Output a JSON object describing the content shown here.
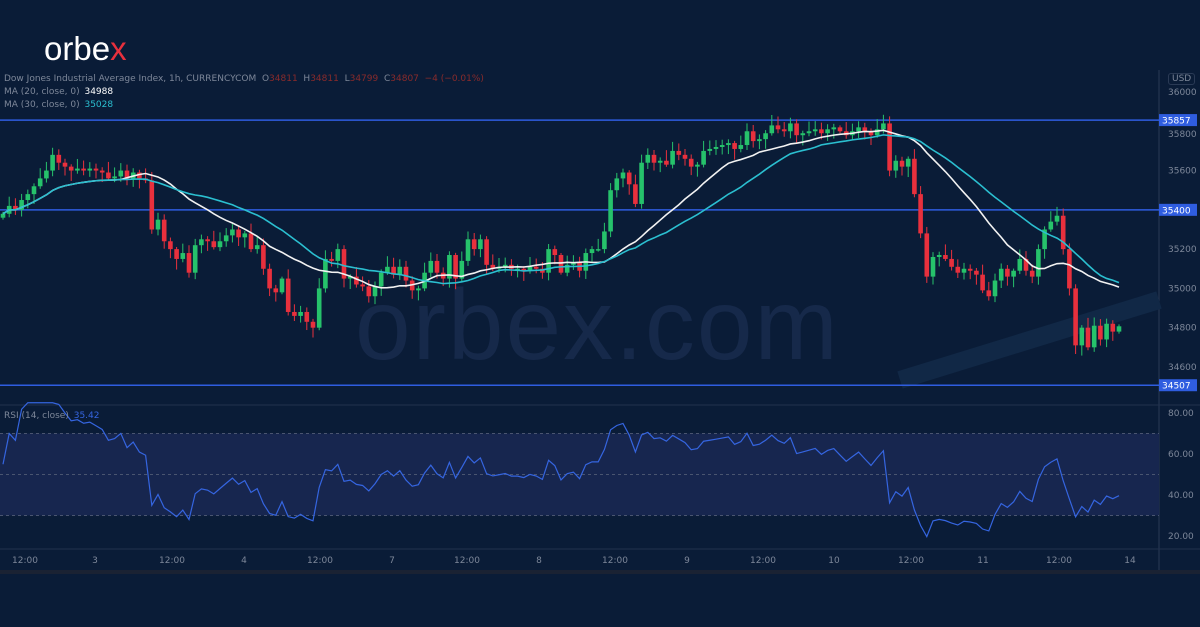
{
  "brand": {
    "logo_text": "orbe",
    "logo_x": "x",
    "watermark": "orbex.com"
  },
  "header": {
    "symbol": "Dow Jones Industrial Average Index, 1h, CURRENCYCOM",
    "o_label": "O",
    "o": "34811",
    "h_label": "H",
    "h": "34811",
    "l_label": "L",
    "l": "34799",
    "c_label": "C",
    "c": "34807",
    "change": "−4 (−0.01%)",
    "ma20_label": "MA (20, close, 0)",
    "ma20_value": "34988",
    "ma30_label": "MA (30, close, 0)",
    "ma30_value": "35028",
    "rsi_label": "RSI (14, close)",
    "rsi_value": "35.42"
  },
  "colors": {
    "background": "#0a1c37",
    "up": "#26c26b",
    "down": "#e8303d",
    "ma20": "#f2f2f2",
    "ma30": "#2bbfd0",
    "level": "#2f5de0",
    "rsi": "#3565e0",
    "rsi_band": "#17264f"
  },
  "chart_data": [
    {
      "type": "candlestick",
      "currency": "USD",
      "ylim": [
        34500,
        36050
      ],
      "y_ticks": [
        "36000",
        "35800",
        "35600",
        "35400",
        "35200",
        "35000",
        "34800",
        "34600"
      ],
      "x_ticks": [
        "12:00",
        "3",
        "12:00",
        "4",
        "12:00",
        "7",
        "12:00",
        "8",
        "12:00",
        "9",
        "12:00",
        "10",
        "12:00",
        "11",
        "12:00",
        "14"
      ],
      "levels": [
        "35857",
        "35400",
        "34507"
      ],
      "closes": [
        35380,
        35420,
        35400,
        35450,
        35480,
        35520,
        35560,
        35600,
        35680,
        35640,
        35620,
        35600,
        35610,
        35600,
        35610,
        35600,
        35590,
        35560,
        35570,
        35600,
        35560,
        35590,
        35560,
        35550,
        35300,
        35350,
        35240,
        35200,
        35150,
        35180,
        35080,
        35220,
        35250,
        35240,
        35210,
        35240,
        35270,
        35300,
        35260,
        35280,
        35200,
        35220,
        35100,
        35000,
        34980,
        35050,
        34880,
        34860,
        34880,
        34830,
        34800,
        35000,
        35150,
        35140,
        35200,
        35050,
        35060,
        35020,
        35010,
        34960,
        35010,
        35080,
        35110,
        35070,
        35110,
        35040,
        34990,
        35000,
        35080,
        35140,
        35080,
        35050,
        35170,
        35050,
        35140,
        35250,
        35200,
        35250,
        35120,
        35100,
        35110,
        35120,
        35100,
        35100,
        35090,
        35110,
        35100,
        35080,
        35200,
        35170,
        35080,
        35120,
        35130,
        35090,
        35180,
        35200,
        35200,
        35290,
        35500,
        35560,
        35590,
        35530,
        35430,
        35640,
        35680,
        35640,
        35650,
        35630,
        35700,
        35680,
        35660,
        35620,
        35630,
        35700,
        35710,
        35720,
        35730,
        35740,
        35710,
        35730,
        35800,
        35750,
        35760,
        35790,
        35830,
        35810,
        35800,
        35840,
        35780,
        35790,
        35800,
        35810,
        35790,
        35810,
        35820,
        35800,
        35780,
        35800,
        35820,
        35800,
        35780,
        35810,
        35840,
        35600,
        35650,
        35620,
        35660,
        35480,
        35280,
        35060,
        35160,
        35170,
        35150,
        35110,
        35080,
        35100,
        35090,
        35070,
        34990,
        34960,
        35040,
        35100,
        35060,
        35090,
        35150,
        35090,
        35060,
        35200,
        35300,
        35340,
        35370,
        35200,
        35000,
        34710,
        34800,
        34700,
        34810,
        34740,
        34820,
        34780,
        34807
      ],
      "indicators": [
        "MA 20",
        "MA 30"
      ]
    },
    {
      "type": "line",
      "name": "RSI (14, close)",
      "ylim": [
        15,
        85
      ],
      "y_ticks": [
        "80.00",
        "60.00",
        "40.00",
        "20.00"
      ],
      "bands": [
        70,
        50,
        30
      ]
    }
  ]
}
